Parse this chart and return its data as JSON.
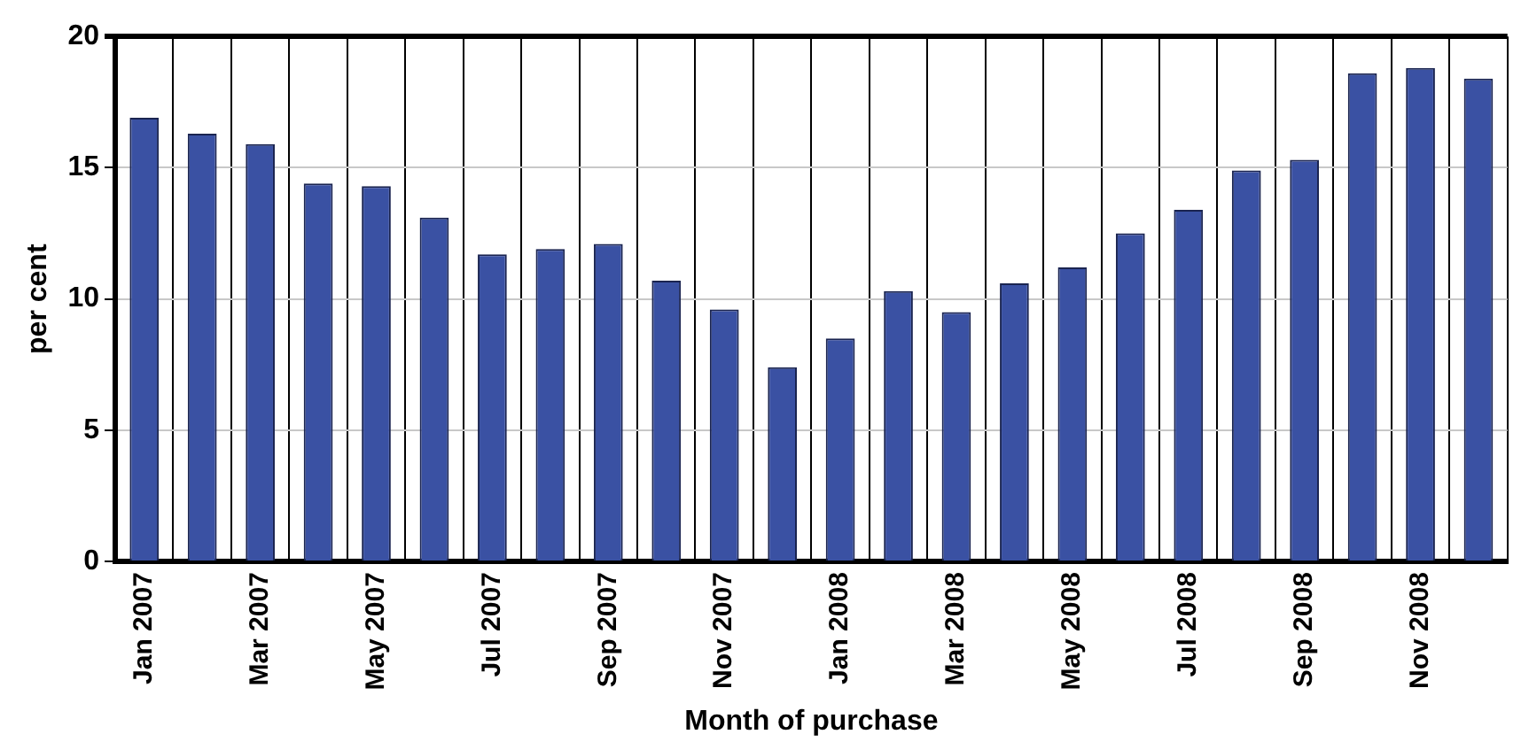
{
  "chart_data": {
    "type": "bar",
    "xlabel": "Month of purchase",
    "ylabel": "per cent",
    "categories": [
      "Jan 2007",
      null,
      "Mar 2007",
      null,
      "May 2007",
      null,
      "Jul 2007",
      null,
      "Sep 2007",
      null,
      "Nov 2007",
      null,
      "Jan 2008",
      null,
      "Mar 2008",
      null,
      "May 2008",
      null,
      "Jul 2008",
      null,
      "Sep 2008",
      null,
      "Nov 2008",
      null
    ],
    "values": [
      16.9,
      16.3,
      15.9,
      14.4,
      14.3,
      13.1,
      11.7,
      11.9,
      12.1,
      10.7,
      9.6,
      7.4,
      8.5,
      10.3,
      9.5,
      10.6,
      11.2,
      12.5,
      13.4,
      14.9,
      15.3,
      18.6,
      18.8,
      18.4
    ],
    "color": "#3a51a3",
    "ylim": [
      0,
      20
    ],
    "yticks": [
      0,
      5,
      10,
      15,
      20
    ],
    "grid": true,
    "legend": false
  }
}
